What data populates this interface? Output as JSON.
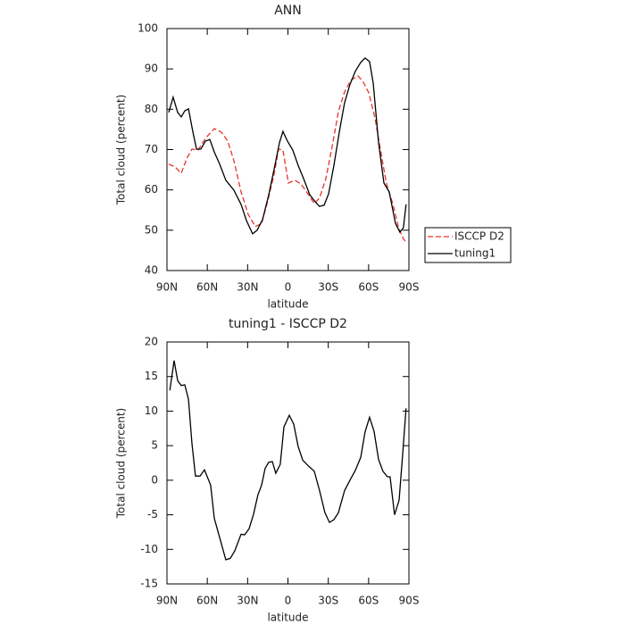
{
  "chart_data": [
    {
      "type": "line",
      "title": "ANN",
      "x_label": "latitude",
      "y_label": "Total cloud (percent)",
      "xlim": [
        90,
        -90
      ],
      "xticks": [
        {
          "value": 90,
          "label": "90N"
        },
        {
          "value": 60,
          "label": "60N"
        },
        {
          "value": 30,
          "label": "30N"
        },
        0,
        {
          "value": -30,
          "label": "30S"
        },
        {
          "value": -60,
          "label": "60S"
        },
        {
          "value": -90,
          "label": "90S"
        }
      ],
      "ylim": [
        40,
        100
      ],
      "yticks": [
        40,
        50,
        60,
        70,
        80,
        90,
        100
      ],
      "legend": "right",
      "series": [
        {
          "name": "ISCCP D2",
          "color": "#e8332b",
          "line_style": "dashed",
          "x": [
            88.7,
            84,
            79.4,
            75.4,
            71.4,
            66.8,
            61.4,
            54.8,
            49.5,
            44.8,
            40.2,
            34.9,
            29.6,
            24.3,
            19.6,
            15,
            10.3,
            7,
            3.7,
            -0.3,
            -5,
            -9.6,
            -14.9,
            -19.6,
            -23.5,
            -28.2,
            -32.8,
            -37.5,
            -42.1,
            -46.8,
            -52.1,
            -56.1,
            -60.1,
            -64.7,
            -69.4,
            -73.3,
            -78,
            -82,
            -85.9,
            -88.6
          ],
          "values": [
            66.4,
            65.7,
            64.1,
            67.7,
            70.1,
            69.9,
            72.8,
            75.2,
            74.3,
            72.1,
            67.2,
            59.5,
            54.0,
            50.9,
            51.7,
            57.3,
            63.9,
            70.1,
            69.9,
            61.7,
            62.4,
            61.5,
            59.0,
            56.6,
            58.0,
            62.8,
            70.6,
            79.4,
            84.3,
            87.2,
            88.3,
            86.7,
            84.1,
            77.9,
            68.8,
            61.5,
            56.6,
            50.9,
            47.8,
            46.9
          ]
        },
        {
          "name": "tuning1",
          "color": "#000000",
          "line_style": "solid",
          "x": [
            88.7,
            85.4,
            82,
            79.4,
            76.7,
            74,
            70.7,
            68,
            64.8,
            61.4,
            58.1,
            54.8,
            50.8,
            46.2,
            40.2,
            34.9,
            30.9,
            26.3,
            22.9,
            18.9,
            14.3,
            9.7,
            6.3,
            3.7,
            0.4,
            -3.6,
            -7.6,
            -11.6,
            -16.2,
            -20.2,
            -23.5,
            -26.9,
            -30.2,
            -34.2,
            -38.2,
            -42.1,
            -46.1,
            -50.1,
            -54.1,
            -57.4,
            -60.7,
            -63.4,
            -67.4,
            -71.4,
            -75.3,
            -80,
            -83.3,
            -85.9,
            -87.9
          ],
          "values": [
            79.2,
            83.0,
            79.2,
            78.1,
            79.6,
            80.1,
            74.3,
            70.1,
            70.1,
            72.1,
            72.5,
            69.4,
            66.4,
            62.4,
            59.9,
            56.4,
            52.4,
            49.1,
            50.0,
            52.6,
            58.8,
            66.1,
            71.7,
            74.5,
            72.1,
            69.9,
            66.1,
            62.8,
            58.8,
            57.1,
            55.9,
            56.2,
            59.0,
            66.1,
            74.3,
            81.6,
            86.1,
            89.4,
            91.6,
            92.7,
            91.8,
            86.5,
            71.7,
            61.7,
            59.5,
            51.7,
            49.5,
            50.6,
            56.4
          ]
        }
      ]
    },
    {
      "type": "line",
      "title": "tuning1 - ISCCP D2",
      "x_label": "latitude",
      "y_label": "Total cloud (percent)",
      "xlim": [
        90,
        -90
      ],
      "xticks": [
        {
          "value": 90,
          "label": "90N"
        },
        {
          "value": 60,
          "label": "60N"
        },
        {
          "value": 30,
          "label": "30N"
        },
        0,
        {
          "value": -30,
          "label": "30S"
        },
        {
          "value": -60,
          "label": "60S"
        },
        {
          "value": -90,
          "label": "90S"
        }
      ],
      "ylim": [
        -15,
        20
      ],
      "yticks": [
        -15,
        -10,
        -5,
        0,
        5,
        10,
        15,
        20
      ],
      "series": [
        {
          "color": "#000000",
          "line_style": "solid",
          "x": [
            87.9,
            84.7,
            82,
            79.4,
            76.7,
            74,
            71.4,
            68.8,
            65.4,
            62.1,
            57.5,
            54.8,
            50.8,
            46.2,
            42.9,
            39.5,
            34.9,
            32.2,
            28.9,
            25.6,
            22.3,
            19.6,
            17,
            14.3,
            11.6,
            9,
            5.7,
            3,
            -1,
            -4.3,
            -7.6,
            -11,
            -15.6,
            -19.6,
            -23.5,
            -27.5,
            -30.9,
            -34.2,
            -37.5,
            -42.1,
            -46.1,
            -50.1,
            -54.1,
            -57.4,
            -60.7,
            -64,
            -67.4,
            -70.7,
            -74,
            -76,
            -79.3,
            -82.7,
            -85.3,
            -87.9
          ],
          "values": [
            13.0,
            17.3,
            14.4,
            13.7,
            13.8,
            11.7,
            5.3,
            0.6,
            0.6,
            1.5,
            -0.7,
            -5.5,
            -8.3,
            -11.5,
            -11.3,
            -10.2,
            -7.8,
            -7.9,
            -7.0,
            -4.9,
            -2.1,
            -0.7,
            1.7,
            2.6,
            2.7,
            1.0,
            2.3,
            7.7,
            9.4,
            8.1,
            4.9,
            2.9,
            2.0,
            1.3,
            -1.5,
            -4.7,
            -6.1,
            -5.7,
            -4.7,
            -1.5,
            0.0,
            1.4,
            3.3,
            7.0,
            9.1,
            7.1,
            3.0,
            1.3,
            0.5,
            0.5,
            -5.0,
            -2.9,
            3.6,
            10.4
          ]
        }
      ]
    }
  ]
}
